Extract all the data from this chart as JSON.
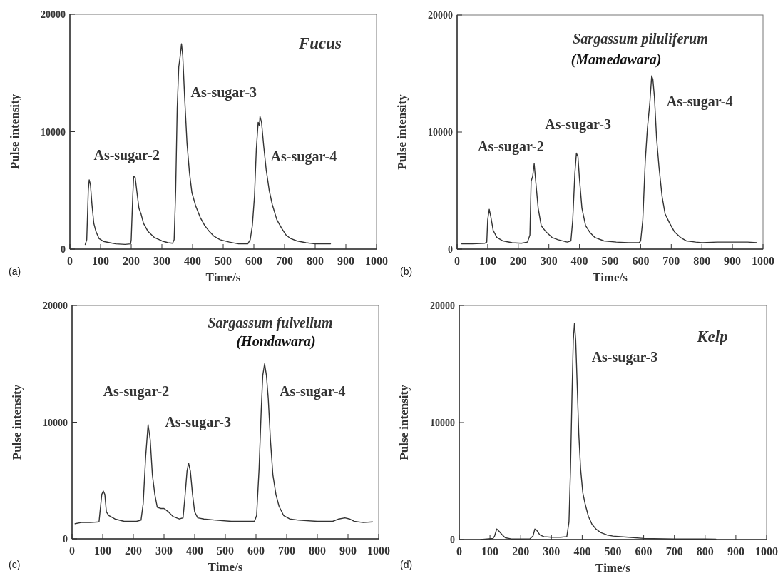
{
  "chart_data": [
    {
      "type": "line",
      "title": "Fucus",
      "xlabel": "Time/s",
      "ylabel": "Pulse intensity",
      "xlim": [
        0,
        1000
      ],
      "xticks": [
        0,
        100,
        200,
        300,
        400,
        500,
        600,
        700,
        800,
        900,
        1000
      ],
      "ylim": [
        0,
        20000
      ],
      "yticks": [
        0,
        10000,
        20000
      ],
      "grid": false,
      "series": [
        {
          "color": "#333333",
          "x": [
            50,
            55,
            60,
            63,
            67,
            72,
            78,
            85,
            95,
            110,
            130,
            150,
            180,
            198,
            200,
            205,
            208,
            213,
            218,
            225,
            232,
            240,
            255,
            275,
            300,
            320,
            335,
            340,
            345,
            350,
            355,
            360,
            364,
            368,
            375,
            382,
            390,
            398,
            410,
            425,
            440,
            455,
            470,
            490,
            520,
            550,
            580,
            588,
            595,
            602,
            608,
            614,
            618,
            620,
            625,
            632,
            640,
            650,
            660,
            675,
            690,
            705,
            720,
            740,
            770,
            800,
            850
          ],
          "values": [
            400,
            800,
            5000,
            5900,
            5500,
            3800,
            2200,
            1500,
            900,
            650,
            550,
            450,
            400,
            450,
            800,
            4500,
            6200,
            6100,
            5000,
            3500,
            3000,
            2200,
            1500,
            1000,
            700,
            550,
            500,
            800,
            5000,
            12000,
            15500,
            16500,
            17500,
            16500,
            12500,
            9000,
            6500,
            4800,
            3700,
            2700,
            2000,
            1500,
            1100,
            800,
            600,
            450,
            450,
            800,
            2000,
            4500,
            8500,
            10800,
            10500,
            11300,
            10800,
            8800,
            6800,
            5000,
            3800,
            2500,
            1800,
            1200,
            900,
            700,
            550,
            450,
            450
          ]
        }
      ],
      "annotations": [
        {
          "text": "As-sugar-2",
          "x": 208,
          "y": 6200
        },
        {
          "text": "As-sugar-3",
          "x": 364,
          "y": 17500
        },
        {
          "text": "As-sugar-4",
          "x": 620,
          "y": 11300
        },
        "(a)"
      ]
    },
    {
      "type": "line",
      "title": "Sargassum piluliferum",
      "subtitle": "(Mamedawara)",
      "xlabel": "Time/s",
      "ylabel": "Pulse intensity",
      "xlim": [
        0,
        1000
      ],
      "xticks": [
        0,
        100,
        200,
        300,
        400,
        500,
        600,
        700,
        800,
        900,
        1000
      ],
      "ylim": [
        0,
        20000
      ],
      "yticks": [
        0,
        10000,
        20000
      ],
      "grid": false,
      "series": [
        {
          "color": "#333333",
          "x": [
            15,
            50,
            90,
            97,
            100,
            105,
            110,
            118,
            130,
            150,
            180,
            210,
            230,
            238,
            242,
            247,
            252,
            257,
            265,
            275,
            290,
            310,
            330,
            360,
            372,
            378,
            385,
            390,
            395,
            400,
            408,
            420,
            435,
            450,
            480,
            520,
            560,
            595,
            600,
            607,
            615,
            622,
            630,
            636,
            640,
            645,
            652,
            660,
            670,
            680,
            695,
            710,
            730,
            750,
            780,
            800,
            850,
            900,
            950,
            980
          ],
          "values": [
            450,
            450,
            500,
            600,
            2500,
            3400,
            2800,
            1600,
            1000,
            700,
            550,
            500,
            600,
            1200,
            5800,
            6200,
            7300,
            5800,
            3500,
            2000,
            1500,
            1000,
            800,
            600,
            700,
            2500,
            6500,
            8200,
            7900,
            6000,
            3500,
            2000,
            1400,
            1000,
            700,
            600,
            550,
            550,
            700,
            2500,
            7500,
            10300,
            12500,
            14800,
            14500,
            13000,
            9500,
            7000,
            4500,
            3000,
            2200,
            1500,
            1000,
            700,
            600,
            550,
            600,
            600,
            600,
            550
          ]
        }
      ],
      "annotations": [
        {
          "text": "As-sugar-2",
          "x": 252,
          "y": 7300
        },
        {
          "text": "As-sugar-3",
          "x": 390,
          "y": 8200
        },
        {
          "text": "As-sugar-4",
          "x": 636,
          "y": 14800
        },
        "(b)"
      ]
    },
    {
      "type": "line",
      "title": "Sargassum fulvellum",
      "subtitle": "(Hondawara)",
      "xlabel": "Time/s",
      "ylabel": "Pulse intensity",
      "xlim": [
        0,
        1000
      ],
      "xticks": [
        0,
        100,
        200,
        300,
        400,
        500,
        600,
        700,
        800,
        900,
        1000
      ],
      "ylim": [
        0,
        20000
      ],
      "yticks": [
        0,
        10000,
        20000
      ],
      "grid": false,
      "series": [
        {
          "color": "#333333",
          "x": [
            10,
            30,
            60,
            88,
            92,
            97,
            102,
            107,
            112,
            120,
            140,
            170,
            210,
            225,
            232,
            240,
            248,
            255,
            262,
            270,
            278,
            290,
            300,
            315,
            330,
            350,
            362,
            368,
            375,
            380,
            386,
            393,
            400,
            410,
            430,
            470,
            520,
            560,
            595,
            602,
            610,
            617,
            622,
            628,
            634,
            640,
            647,
            655,
            665,
            675,
            690,
            710,
            740,
            800,
            850,
            870,
            890,
            905,
            920,
            950,
            980
          ],
          "values": [
            1300,
            1400,
            1400,
            1450,
            2500,
            3800,
            4100,
            3800,
            2300,
            2000,
            1700,
            1500,
            1500,
            1600,
            3000,
            7000,
            9800,
            8500,
            5500,
            3800,
            2700,
            2600,
            2600,
            2300,
            1900,
            1700,
            1800,
            3500,
            5800,
            6500,
            5800,
            3800,
            2300,
            1800,
            1700,
            1600,
            1500,
            1500,
            1500,
            2000,
            6000,
            11000,
            14000,
            15000,
            14000,
            12000,
            8500,
            5500,
            3800,
            2800,
            2000,
            1700,
            1600,
            1500,
            1500,
            1700,
            1800,
            1700,
            1500,
            1400,
            1450
          ]
        }
      ],
      "annotations": [
        {
          "text": "As-sugar-2",
          "x": 248,
          "y": 9800
        },
        {
          "text": "As-sugar-3",
          "x": 380,
          "y": 6500
        },
        {
          "text": "As-sugar-4",
          "x": 628,
          "y": 15000
        },
        "(c)"
      ]
    },
    {
      "type": "line",
      "title": "Kelp",
      "xlabel": "Time/s",
      "ylabel": "Pulse intensity",
      "xlim": [
        0,
        1000
      ],
      "xticks": [
        0,
        100,
        200,
        300,
        400,
        500,
        600,
        700,
        800,
        900,
        1000
      ],
      "ylim": [
        0,
        20000
      ],
      "yticks": [
        0,
        10000,
        20000
      ],
      "grid": false,
      "series": [
        {
          "color": "#333333",
          "x": [
            70,
            110,
            115,
            122,
            130,
            140,
            150,
            170,
            200,
            230,
            240,
            246,
            252,
            262,
            275,
            300,
            330,
            350,
            357,
            362,
            367,
            371,
            375,
            379,
            384,
            389,
            395,
            402,
            410,
            420,
            432,
            445,
            460,
            480,
            500,
            550,
            600,
            700,
            800,
            835
          ],
          "values": [
            0,
            100,
            300,
            900,
            700,
            400,
            150,
            50,
            50,
            60,
            300,
            900,
            800,
            400,
            250,
            200,
            200,
            250,
            1500,
            6000,
            12500,
            17000,
            18500,
            17000,
            13000,
            9000,
            6000,
            4000,
            3000,
            2000,
            1300,
            900,
            600,
            400,
            300,
            200,
            100,
            50,
            50,
            40
          ]
        }
      ],
      "annotations": [
        {
          "text": "As-sugar-3",
          "x": 375,
          "y": 18500
        },
        "(d)"
      ]
    }
  ]
}
